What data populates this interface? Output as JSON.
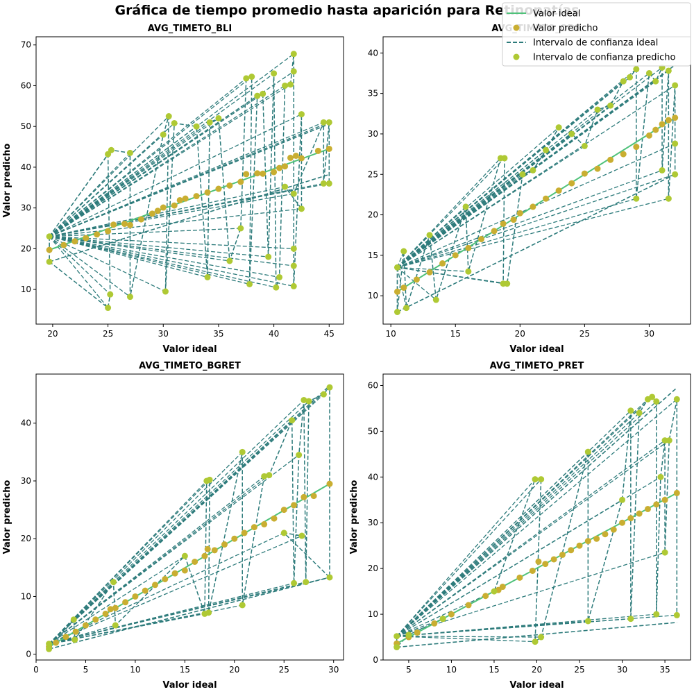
{
  "figure": {
    "title": "Gráfica de tiempo promedio hasta aparición para Retinopatías",
    "legend": {
      "placement": "top-right",
      "entries": [
        {
          "label": "Valor ideal",
          "kind": "line",
          "color": "#4fc27a"
        },
        {
          "label": "Valor predicho",
          "kind": "marker",
          "color": "#c9ae31"
        },
        {
          "label": "Intervalo de confianza ideal",
          "kind": "dashed",
          "color": "#2d7b7b"
        },
        {
          "label": "Intervalo de confianza predicho",
          "kind": "marker",
          "color": "#afc934"
        }
      ]
    }
  },
  "chart_data": [
    {
      "type": "scatter",
      "title": "AVG_TIMETO_BLI",
      "xlabel": "Valor ideal",
      "ylabel": "Valor predicho",
      "xlim": [
        18.5,
        46.3
      ],
      "ylim": [
        1.5,
        72
      ],
      "xticks": [
        20,
        25,
        30,
        35,
        40,
        45
      ],
      "yticks": [
        10,
        20,
        30,
        40,
        50,
        60,
        70
      ],
      "ideal_line": [
        [
          19.7,
          19.7
        ],
        [
          45,
          44.5
        ]
      ],
      "ci_ideal": {
        "upper": [
          [
            19.7,
            23
          ],
          [
            45,
            50.6
          ]
        ],
        "lower": [
          [
            19.7,
            16.8
          ],
          [
            45,
            38.2
          ]
        ]
      },
      "predicted": [
        [
          19.7,
          19.7
        ],
        [
          21,
          20.9
        ],
        [
          22,
          21.8
        ],
        [
          23,
          22.6
        ],
        [
          24,
          23.5
        ],
        [
          25,
          24.3
        ],
        [
          25.5,
          25.9
        ],
        [
          26.5,
          26.1
        ],
        [
          27,
          25.8
        ],
        [
          28,
          27.2
        ],
        [
          29,
          28.6
        ],
        [
          29.5,
          29.3
        ],
        [
          30,
          30.1
        ],
        [
          31,
          30.6
        ],
        [
          31.5,
          31.9
        ],
        [
          32,
          32.3
        ],
        [
          33,
          32.9
        ],
        [
          34,
          33.8
        ],
        [
          35,
          34.7
        ],
        [
          36,
          35.5
        ],
        [
          37,
          36.4
        ],
        [
          37.5,
          38.3
        ],
        [
          38.5,
          38.5
        ],
        [
          39,
          38.4
        ],
        [
          40,
          38.8
        ],
        [
          40.5,
          39.8
        ],
        [
          41,
          40.2
        ],
        [
          41.5,
          42.3
        ],
        [
          42,
          42.8
        ],
        [
          42.5,
          42.2
        ],
        [
          44,
          44
        ],
        [
          45,
          44.5
        ]
      ],
      "ci_predicted": [
        [
          19.7,
          23
        ],
        [
          19.7,
          16.8
        ],
        [
          25,
          5.5
        ],
        [
          25.2,
          8.8
        ],
        [
          25,
          43.2
        ],
        [
          25.3,
          44.2
        ],
        [
          27,
          43.5
        ],
        [
          27,
          8.2
        ],
        [
          30,
          48
        ],
        [
          30.5,
          52.5
        ],
        [
          30.2,
          9.5
        ],
        [
          31,
          50.8
        ],
        [
          33,
          50
        ],
        [
          34,
          13
        ],
        [
          34.2,
          51
        ],
        [
          35,
          52
        ],
        [
          36,
          17
        ],
        [
          37,
          25
        ],
        [
          37.5,
          61.8
        ],
        [
          38,
          62.2
        ],
        [
          37.8,
          11.3
        ],
        [
          38.5,
          57.5
        ],
        [
          39,
          58
        ],
        [
          39.5,
          18
        ],
        [
          40,
          63
        ],
        [
          40.2,
          10.5
        ],
        [
          40.5,
          13
        ],
        [
          41,
          60
        ],
        [
          41.5,
          60.3
        ],
        [
          41.8,
          67.8
        ],
        [
          41.8,
          63.5
        ],
        [
          41.8,
          20
        ],
        [
          41.8,
          15.8
        ],
        [
          41.8,
          10.8
        ],
        [
          42.5,
          53
        ],
        [
          42.5,
          29.8
        ],
        [
          41,
          35.2
        ],
        [
          41.8,
          33.5
        ],
        [
          44.5,
          51
        ],
        [
          44.5,
          36
        ],
        [
          45,
          51
        ],
        [
          45,
          36
        ]
      ]
    },
    {
      "type": "scatter",
      "title": "AVG_TIMETO_ODR",
      "xlabel": "Valor ideal",
      "ylabel": "",
      "xlim": [
        9.4,
        33.2
      ],
      "ylim": [
        6.5,
        42
      ],
      "xticks": [
        10,
        15,
        20,
        25,
        30
      ],
      "yticks": [
        10,
        15,
        20,
        25,
        30,
        35,
        40
      ],
      "ideal_line": [
        [
          10.5,
          10.5
        ],
        [
          32,
          32
        ]
      ],
      "ci_ideal": {
        "upper": [
          [
            10.5,
            13.5
          ],
          [
            32,
            38.5
          ]
        ],
        "lower": [
          [
            10.5,
            8
          ],
          [
            32,
            25
          ]
        ]
      },
      "predicted": [
        [
          10.5,
          10.5
        ],
        [
          11,
          11
        ],
        [
          12,
          12
        ],
        [
          13,
          12.9
        ],
        [
          14,
          14
        ],
        [
          15,
          15
        ],
        [
          16,
          15.9
        ],
        [
          17,
          17
        ],
        [
          18,
          18
        ],
        [
          18.7,
          18.9
        ],
        [
          19.5,
          19.4
        ],
        [
          20,
          20.2
        ],
        [
          21,
          21
        ],
        [
          22,
          22
        ],
        [
          23,
          23
        ],
        [
          24,
          23.9
        ],
        [
          25,
          25.1
        ],
        [
          26,
          25.7
        ],
        [
          27,
          26.8
        ],
        [
          28,
          27.5
        ],
        [
          29,
          28.4
        ],
        [
          30,
          29.8
        ],
        [
          30.5,
          30.5
        ],
        [
          31,
          31.2
        ],
        [
          31.5,
          31.7
        ],
        [
          32,
          32
        ]
      ],
      "ci_predicted": [
        [
          10.5,
          13.5
        ],
        [
          10.5,
          8
        ],
        [
          11,
          15.5
        ],
        [
          11.2,
          8.5
        ],
        [
          13,
          17.5
        ],
        [
          13.5,
          9.5
        ],
        [
          15.8,
          21
        ],
        [
          16,
          13
        ],
        [
          18.5,
          27
        ],
        [
          18.8,
          27
        ],
        [
          18.7,
          11.5
        ],
        [
          19,
          11.5
        ],
        [
          20.2,
          25
        ],
        [
          21,
          25.5
        ],
        [
          22,
          28
        ],
        [
          23,
          30.8
        ],
        [
          24,
          30
        ],
        [
          25,
          28.5
        ],
        [
          26,
          33
        ],
        [
          27,
          33.5
        ],
        [
          28,
          36.5
        ],
        [
          28.5,
          37
        ],
        [
          29,
          38
        ],
        [
          29,
          22
        ],
        [
          30,
          37.5
        ],
        [
          30.5,
          36.5
        ],
        [
          31,
          38.2
        ],
        [
          31,
          25.5
        ],
        [
          31.5,
          37.8
        ],
        [
          31.5,
          22
        ],
        [
          32,
          36
        ],
        [
          32,
          28.8
        ],
        [
          32,
          25
        ]
      ]
    },
    {
      "type": "scatter",
      "title": "AVG_TIMETO_BGRET",
      "xlabel": "Valor ideal",
      "ylabel": "Valor predicho",
      "xlim": [
        0,
        31
      ],
      "ylim": [
        -1,
        48.5
      ],
      "xticks": [
        0,
        5,
        10,
        15,
        20,
        25,
        30
      ],
      "yticks": [
        0,
        10,
        20,
        30,
        40
      ],
      "ideal_line": [
        [
          1.3,
          1.3
        ],
        [
          29.6,
          29.5
        ]
      ],
      "ci_ideal": {
        "upper": [
          [
            1.3,
            1.8
          ],
          [
            29.6,
            46.5
          ]
        ],
        "lower": [
          [
            1.3,
            0.9
          ],
          [
            29.6,
            13.3
          ]
        ]
      },
      "predicted": [
        [
          1.3,
          1.3
        ],
        [
          2,
          2
        ],
        [
          3,
          3
        ],
        [
          4,
          3.9
        ],
        [
          5,
          5
        ],
        [
          6,
          6
        ],
        [
          7,
          7
        ],
        [
          7.5,
          7.8
        ],
        [
          8,
          8
        ],
        [
          9,
          9
        ],
        [
          10,
          10
        ],
        [
          11,
          11
        ],
        [
          12,
          12
        ],
        [
          13,
          13
        ],
        [
          14,
          14
        ],
        [
          15,
          14.5
        ],
        [
          16,
          16
        ],
        [
          17,
          17
        ],
        [
          17.3,
          18.2
        ],
        [
          18,
          18
        ],
        [
          19,
          19
        ],
        [
          20,
          20
        ],
        [
          21,
          21
        ],
        [
          22,
          22
        ],
        [
          23,
          22.5
        ],
        [
          24,
          23.5
        ],
        [
          25,
          25
        ],
        [
          26,
          25.8
        ],
        [
          27,
          27.2
        ],
        [
          28,
          27.4
        ],
        [
          29.6,
          29.5
        ]
      ],
      "ci_predicted": [
        [
          1.3,
          1.8
        ],
        [
          1.3,
          0.9
        ],
        [
          3.8,
          6
        ],
        [
          3.9,
          2.5
        ],
        [
          7.8,
          12.5
        ],
        [
          8,
          5
        ],
        [
          15,
          17
        ],
        [
          17,
          7
        ],
        [
          17.2,
          30
        ],
        [
          17.5,
          30.2
        ],
        [
          17.4,
          7.2
        ],
        [
          20.8,
          35
        ],
        [
          20.8,
          8.5
        ],
        [
          23,
          30.8
        ],
        [
          23.5,
          31
        ],
        [
          25.8,
          40.5
        ],
        [
          26,
          12.3
        ],
        [
          26.5,
          34.5
        ],
        [
          27,
          44
        ],
        [
          27.2,
          12.5
        ],
        [
          27.5,
          43.8
        ],
        [
          29,
          45
        ],
        [
          29.6,
          46.2
        ],
        [
          29.6,
          13.3
        ],
        [
          25,
          21
        ],
        [
          26.8,
          20.5
        ]
      ]
    },
    {
      "type": "scatter",
      "title": "AVG_TIMETO_PRET",
      "xlabel": "Valor ideal",
      "ylabel": "Valor predicho",
      "xlim": [
        2,
        38
      ],
      "ylim": [
        0,
        62.5
      ],
      "xticks": [
        5,
        10,
        15,
        20,
        25,
        30,
        35
      ],
      "yticks": [
        0,
        10,
        20,
        30,
        40,
        50,
        60
      ],
      "ideal_line": [
        [
          3.6,
          3.6
        ],
        [
          36.4,
          36.5
        ]
      ],
      "ci_ideal": {
        "upper": [
          [
            3.6,
            5.2
          ],
          [
            36.4,
            59.5
          ]
        ],
        "lower": [
          [
            3.6,
            2.8
          ],
          [
            36.4,
            8.2
          ]
        ]
      },
      "predicted": [
        [
          3.6,
          3.6
        ],
        [
          5,
          5
        ],
        [
          6,
          6
        ],
        [
          8,
          8
        ],
        [
          9,
          9
        ],
        [
          10,
          10
        ],
        [
          12,
          12
        ],
        [
          14,
          14
        ],
        [
          15.5,
          15.3
        ],
        [
          16,
          16
        ],
        [
          18,
          18
        ],
        [
          19.5,
          19.5
        ],
        [
          20.2,
          21.5
        ],
        [
          21,
          21
        ],
        [
          22,
          22
        ],
        [
          23,
          23
        ],
        [
          24,
          24
        ],
        [
          25,
          25
        ],
        [
          26,
          26
        ],
        [
          27,
          26.5
        ],
        [
          28,
          27.5
        ],
        [
          29,
          28.5
        ],
        [
          30,
          30
        ],
        [
          31,
          31
        ],
        [
          32,
          32
        ],
        [
          33,
          33
        ],
        [
          34,
          34
        ],
        [
          35,
          35
        ],
        [
          36.4,
          36.5
        ]
      ],
      "ci_predicted": [
        [
          3.6,
          5.2
        ],
        [
          3.6,
          2.8
        ],
        [
          5,
          5.5
        ],
        [
          9,
          9
        ],
        [
          15,
          15
        ],
        [
          19.8,
          39.5
        ],
        [
          20.5,
          39.5
        ],
        [
          19.8,
          4
        ],
        [
          20.5,
          5
        ],
        [
          26,
          45.5
        ],
        [
          26,
          8.5
        ],
        [
          30,
          35
        ],
        [
          31,
          54.5
        ],
        [
          31,
          9
        ],
        [
          32,
          54
        ],
        [
          33,
          57
        ],
        [
          33.5,
          57.5
        ],
        [
          34,
          56.5
        ],
        [
          34,
          10
        ],
        [
          34.5,
          40
        ],
        [
          35,
          48
        ],
        [
          35,
          23.5
        ],
        [
          35.5,
          48
        ],
        [
          36.4,
          57
        ],
        [
          36.4,
          9.8
        ]
      ]
    }
  ]
}
